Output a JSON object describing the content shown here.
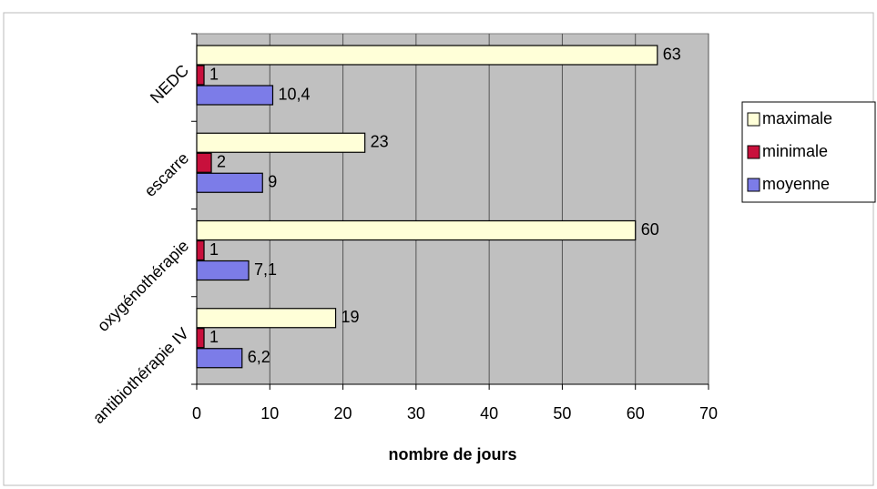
{
  "chart_data": {
    "type": "bar",
    "orientation": "horizontal",
    "categories": [
      "NEDC",
      "escarre",
      "oxygénothérapie",
      "antibiothérapie IV"
    ],
    "series": [
      {
        "name": "maximale",
        "color": "#ffffd8",
        "values": [
          63,
          23,
          60,
          19
        ]
      },
      {
        "name": "minimale",
        "color": "#c8103c",
        "values": [
          1,
          2,
          1,
          1
        ]
      },
      {
        "name": "moyenne",
        "color": "#7c7ce8",
        "values": [
          10.4,
          9,
          7.1,
          6.2
        ],
        "value_labels": [
          "10,4",
          "9",
          "7,1",
          "6,2"
        ]
      }
    ],
    "xlabel": "nombre de jours",
    "xlim": [
      0,
      70
    ],
    "xticks": [
      0,
      10,
      20,
      30,
      40,
      50,
      60,
      70
    ],
    "grid": true,
    "legend": "right",
    "plot_background": "#c0c0c0"
  }
}
